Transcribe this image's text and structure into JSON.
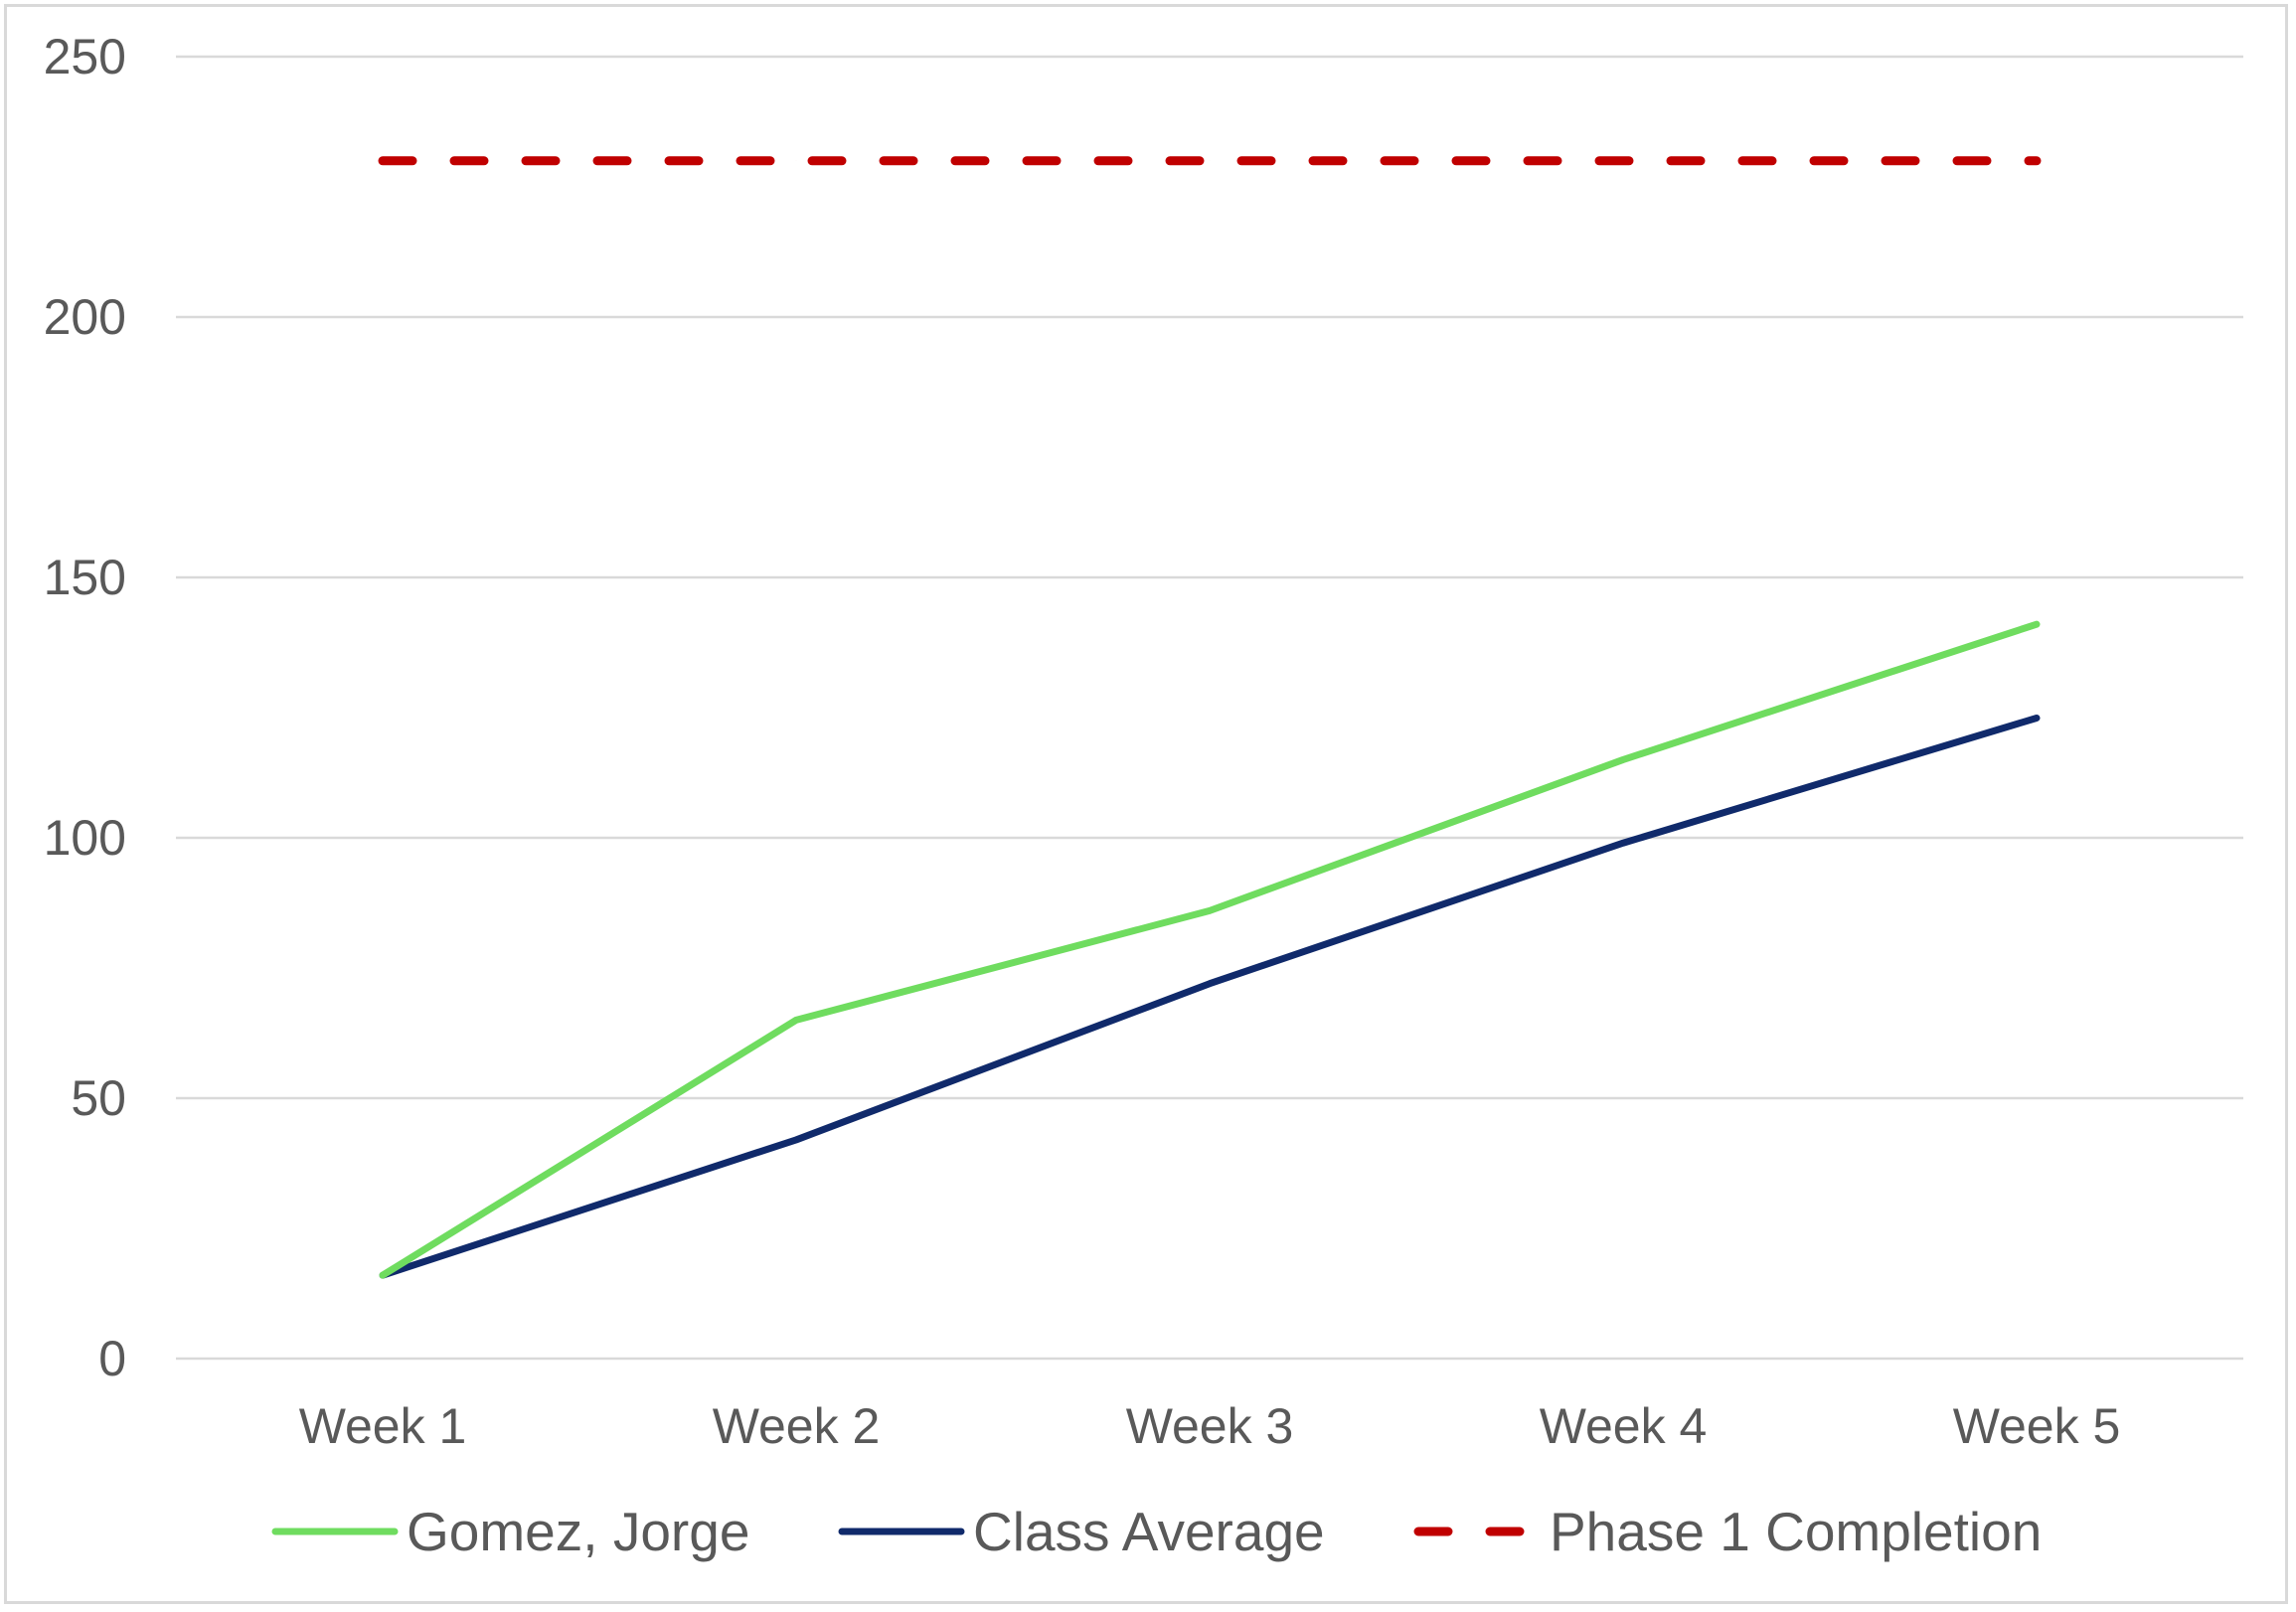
{
  "chart_data": {
    "type": "line",
    "title": "",
    "xlabel": "",
    "ylabel": "",
    "categories": [
      "Week 1",
      "Week 2",
      "Week 3",
      "Week 4",
      "Week 5"
    ],
    "ylim": [
      0,
      250
    ],
    "yticks": [
      0,
      50,
      100,
      150,
      200,
      250
    ],
    "grid": true,
    "legend_position": "bottom",
    "series": [
      {
        "name": "Gomez, Jorge",
        "values": [
          16,
          65,
          86,
          115,
          141
        ],
        "color": "#6fdc5f",
        "style": "solid"
      },
      {
        "name": "Class Average",
        "values": [
          16,
          42,
          72,
          99,
          123
        ],
        "color": "#102a6b",
        "style": "solid"
      },
      {
        "name": "Phase 1 Completion",
        "values": [
          230,
          230,
          230,
          230,
          230
        ],
        "color": "#c00000",
        "style": "dashed"
      }
    ]
  }
}
